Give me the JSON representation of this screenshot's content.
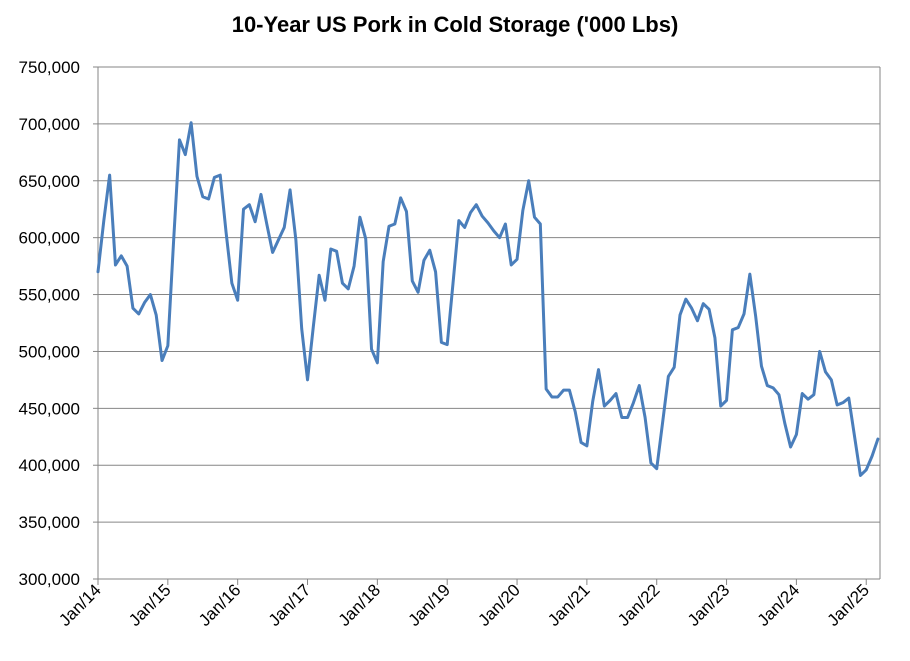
{
  "colors": {
    "series_line": "#4a7ebb",
    "gridline": "#868686",
    "axis": "#868686"
  },
  "chart_data": {
    "type": "line",
    "title": "10-Year US Pork in Cold Storage ('000 Lbs)",
    "xlabel": "",
    "ylabel": "",
    "ylim": [
      300000,
      750000
    ],
    "yticks": [
      300000,
      350000,
      400000,
      450000,
      500000,
      550000,
      600000,
      650000,
      700000,
      750000
    ],
    "ytick_labels": [
      "300,000",
      "350,000",
      "400,000",
      "450,000",
      "500,000",
      "550,000",
      "600,000",
      "650,000",
      "700,000",
      "750,000"
    ],
    "xtick_labels": [
      "Jan/14",
      "Jan/15",
      "Jan/16",
      "Jan/17",
      "Jan/18",
      "Jan/19",
      "Jan/20",
      "Jan/21",
      "Jan/22",
      "Jan/23",
      "Jan/24",
      "Jan/25"
    ],
    "grid": true,
    "legend": "none",
    "x_start": "Jan/14",
    "x_frequency": "monthly",
    "series": [
      {
        "values": [
          570000,
          615000,
          655000,
          576000,
          584000,
          575000,
          538000,
          533000,
          543000,
          550000,
          532000,
          492000,
          505000,
          598000,
          686000,
          673000,
          701000,
          654000,
          636000,
          634000,
          653000,
          655000,
          605000,
          560000,
          545000,
          625000,
          629000,
          614000,
          638000,
          612000,
          587000,
          598000,
          609000,
          642000,
          598000,
          520000,
          475000,
          522000,
          567000,
          545000,
          590000,
          588000,
          560000,
          555000,
          575000,
          618000,
          599000,
          502000,
          490000,
          579000,
          610000,
          612000,
          635000,
          623000,
          562000,
          552000,
          580000,
          589000,
          570000,
          508000,
          506000,
          560000,
          615000,
          609000,
          622000,
          629000,
          619000,
          613000,
          606000,
          600000,
          612000,
          576000,
          581000,
          624000,
          650000,
          618000,
          612000,
          467000,
          460000,
          460000,
          466000,
          466000,
          447000,
          420000,
          417000,
          456000,
          484000,
          452000,
          457000,
          463000,
          442000,
          442000,
          455000,
          470000,
          442000,
          402000,
          397000,
          437000,
          478000,
          486000,
          532000,
          546000,
          538000,
          527000,
          542000,
          537000,
          512000,
          452000,
          457000,
          519000,
          521000,
          533000,
          568000,
          531000,
          487000,
          470000,
          468000,
          462000,
          437000,
          416000,
          427000,
          463000,
          458000,
          462000,
          500000,
          482000,
          475000,
          453000,
          455000,
          459000,
          425000,
          391000,
          396000,
          408000,
          423000
        ]
      }
    ]
  }
}
